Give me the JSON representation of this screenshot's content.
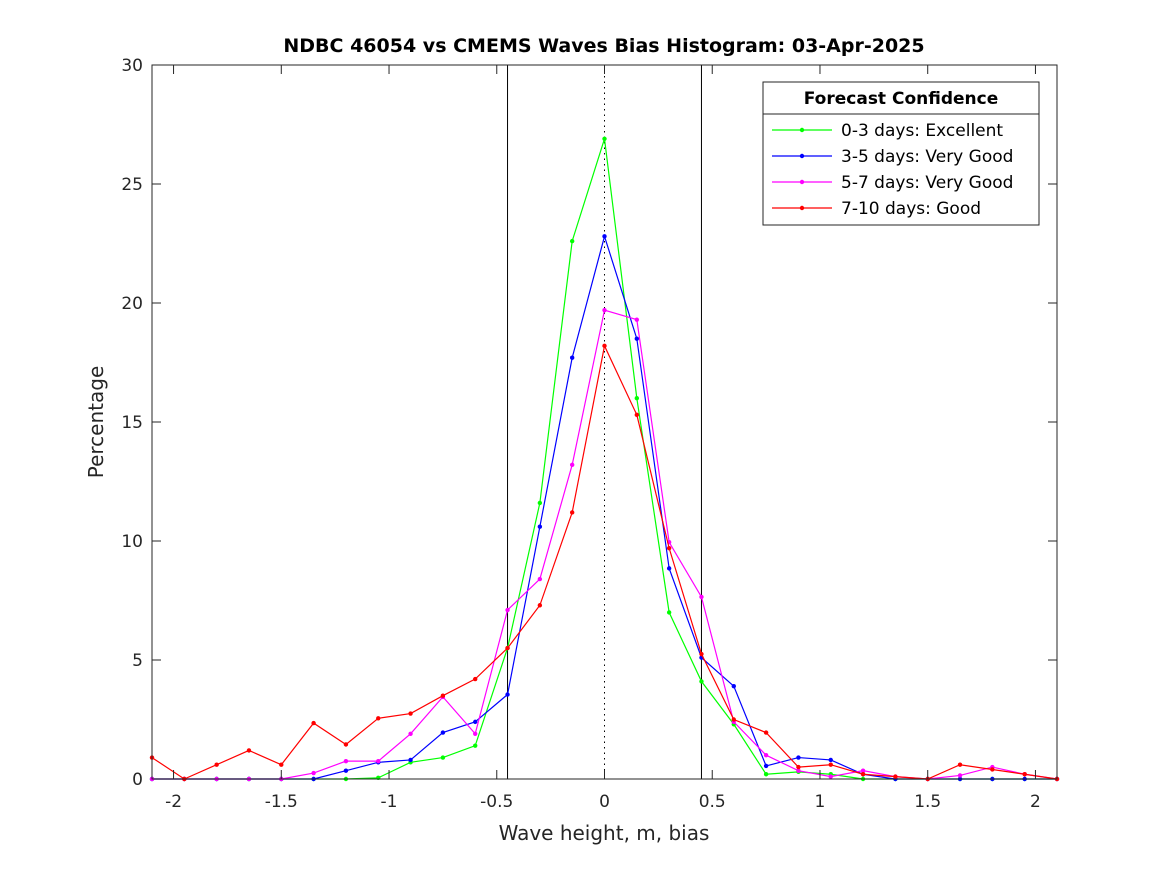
{
  "chart_data": {
    "type": "line",
    "title": "NDBC 46054 vs CMEMS Waves Bias Histogram: 03-Apr-2025",
    "xlabel": "Wave height, m, bias",
    "ylabel": "Percentage",
    "xlim": [
      -2.1,
      2.1
    ],
    "ylim": [
      0,
      30
    ],
    "xticks": [
      -2,
      -1.5,
      -1,
      -0.5,
      0,
      0.5,
      1,
      1.5,
      2
    ],
    "xtick_labels": [
      "-2",
      "-1.5",
      "-1",
      "-0.5",
      "0",
      "0.5",
      "1",
      "1.5",
      "2"
    ],
    "yticks": [
      0,
      5,
      10,
      15,
      20,
      25,
      30
    ],
    "ytick_labels": [
      "0",
      "5",
      "10",
      "15",
      "20",
      "25",
      "30"
    ],
    "reference_lines": [
      {
        "x": -0.45,
        "style": "solid"
      },
      {
        "x": 0,
        "style": "dotted"
      },
      {
        "x": 0.45,
        "style": "solid"
      }
    ],
    "x": [
      -2.1,
      -1.95,
      -1.8,
      -1.65,
      -1.5,
      -1.35,
      -1.2,
      -1.05,
      -0.9,
      -0.75,
      -0.6,
      -0.45,
      -0.3,
      -0.15,
      0,
      0.15,
      0.3,
      0.45,
      0.6,
      0.75,
      0.9,
      1.05,
      1.2,
      1.35,
      1.5,
      1.65,
      1.8,
      1.95,
      2.1
    ],
    "series": [
      {
        "name": "0-3 days: Excellent",
        "color": "#00ff00",
        "values": [
          0,
          0,
          0,
          0,
          0,
          0,
          0,
          0.05,
          0.7,
          0.9,
          1.4,
          5.5,
          11.6,
          22.6,
          26.9,
          16.0,
          7.0,
          4.1,
          2.3,
          0.2,
          0.3,
          0.2,
          0,
          0,
          0,
          0,
          0,
          0,
          0
        ]
      },
      {
        "name": "3-5 days: Very Good",
        "color": "#0000ff",
        "values": [
          0,
          0,
          0,
          0,
          0,
          0,
          0.35,
          0.7,
          0.8,
          1.95,
          2.4,
          3.55,
          10.6,
          17.7,
          22.8,
          18.5,
          8.85,
          5.1,
          3.9,
          0.55,
          0.9,
          0.8,
          0.2,
          0,
          0,
          0,
          0,
          0,
          0
        ]
      },
      {
        "name": "5-7 days: Very Good",
        "color": "#ff00ff",
        "values": [
          0,
          0,
          0,
          0,
          0,
          0.25,
          0.75,
          0.75,
          1.9,
          3.45,
          1.9,
          7.1,
          8.4,
          13.2,
          19.7,
          19.3,
          9.95,
          7.65,
          2.4,
          1.0,
          0.35,
          0.1,
          0.35,
          0.1,
          0,
          0.15,
          0.5,
          0.2,
          0
        ]
      },
      {
        "name": "7-10 days: Good",
        "color": "#ff0000",
        "values": [
          0.9,
          0,
          0.6,
          1.2,
          0.6,
          2.35,
          1.45,
          2.55,
          2.75,
          3.5,
          4.2,
          5.5,
          7.3,
          11.2,
          18.2,
          15.3,
          9.7,
          5.25,
          2.5,
          1.95,
          0.5,
          0.6,
          0.2,
          0.1,
          0,
          0.6,
          0.4,
          0.2,
          0
        ]
      }
    ],
    "legend": {
      "title": "Forecast Confidence",
      "position": "top-right"
    }
  }
}
